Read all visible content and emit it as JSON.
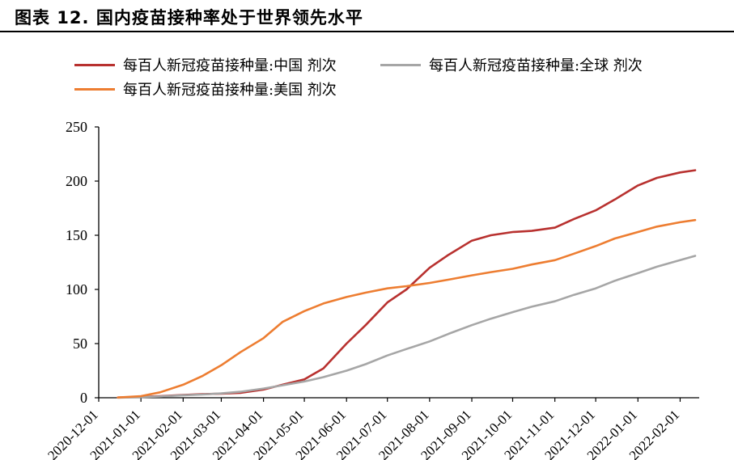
{
  "header": {
    "title": "图表 12. 国内疫苗接种率处于世界领先水平"
  },
  "chart_data": {
    "type": "line",
    "x_unit": "month",
    "x": [
      "2020-12-01",
      "2021-01-01",
      "2021-02-01",
      "2021-03-01",
      "2021-04-01",
      "2021-05-01",
      "2021-06-01",
      "2021-07-01",
      "2021-08-01",
      "2021-09-01",
      "2021-10-01",
      "2021-11-01",
      "2021-12-01",
      "2022-01-01",
      "2022-02-01"
    ],
    "x_tick_labels": [
      "2020-12-01",
      "2021-01-01",
      "2021-02-01",
      "2021-03-01",
      "2021-04-01",
      "2021-05-01",
      "2021-06-01",
      "2021-07-01",
      "2021-08-01",
      "2021-09-01",
      "2021-10-01",
      "2021-11-01",
      "2021-12-01",
      "2022-01-01",
      "2022-02-01"
    ],
    "ylim": [
      0,
      250
    ],
    "y_ticks": [
      0,
      50,
      100,
      150,
      200,
      250
    ],
    "grid": false,
    "legend_position": "top",
    "series": [
      {
        "name": "每百人新冠疫苗接种量:中国 剂次",
        "color": "#b8312f",
        "points": [
          [
            "2020-12-15",
            0.2
          ],
          [
            "2021-01-01",
            0.8
          ],
          [
            "2021-01-15",
            1.5
          ],
          [
            "2021-02-01",
            2.6
          ],
          [
            "2021-02-15",
            3.3
          ],
          [
            "2021-03-01",
            3.8
          ],
          [
            "2021-03-15",
            4.5
          ],
          [
            "2021-04-01",
            7.5
          ],
          [
            "2021-04-15",
            12
          ],
          [
            "2021-05-01",
            17
          ],
          [
            "2021-05-15",
            27
          ],
          [
            "2021-06-01",
            50
          ],
          [
            "2021-06-15",
            67
          ],
          [
            "2021-07-01",
            88
          ],
          [
            "2021-07-15",
            100
          ],
          [
            "2021-08-01",
            120
          ],
          [
            "2021-08-15",
            132
          ],
          [
            "2021-09-01",
            145
          ],
          [
            "2021-09-15",
            150
          ],
          [
            "2021-10-01",
            153
          ],
          [
            "2021-10-15",
            154
          ],
          [
            "2021-11-01",
            157
          ],
          [
            "2021-11-15",
            165
          ],
          [
            "2021-12-01",
            173
          ],
          [
            "2021-12-15",
            183
          ],
          [
            "2022-01-01",
            196
          ],
          [
            "2022-01-15",
            203
          ],
          [
            "2022-02-01",
            208
          ],
          [
            "2022-02-12",
            210
          ]
        ]
      },
      {
        "name": "每百人新冠疫苗接种量:全球 剂次",
        "color": "#a6a6a6",
        "points": [
          [
            "2020-12-15",
            0.1
          ],
          [
            "2021-01-01",
            0.6
          ],
          [
            "2021-01-15",
            1.2
          ],
          [
            "2021-02-01",
            2.3
          ],
          [
            "2021-02-15",
            3.0
          ],
          [
            "2021-03-01",
            4.0
          ],
          [
            "2021-03-15",
            5.5
          ],
          [
            "2021-04-01",
            8.5
          ],
          [
            "2021-04-15",
            11.5
          ],
          [
            "2021-05-01",
            15
          ],
          [
            "2021-05-15",
            19
          ],
          [
            "2021-06-01",
            25
          ],
          [
            "2021-06-15",
            31
          ],
          [
            "2021-07-01",
            39
          ],
          [
            "2021-07-15",
            45
          ],
          [
            "2021-08-01",
            52
          ],
          [
            "2021-08-15",
            59
          ],
          [
            "2021-09-01",
            67
          ],
          [
            "2021-09-15",
            73
          ],
          [
            "2021-10-01",
            79
          ],
          [
            "2021-10-15",
            84
          ],
          [
            "2021-11-01",
            89
          ],
          [
            "2021-11-15",
            95
          ],
          [
            "2021-12-01",
            101
          ],
          [
            "2021-12-15",
            108
          ],
          [
            "2022-01-01",
            115
          ],
          [
            "2022-01-15",
            121
          ],
          [
            "2022-02-01",
            127
          ],
          [
            "2022-02-12",
            131
          ]
        ]
      },
      {
        "name": "每百人新冠疫苗接种量:美国 剂次",
        "color": "#ed7d31",
        "points": [
          [
            "2020-12-15",
            0.2
          ],
          [
            "2021-01-01",
            1.5
          ],
          [
            "2021-01-15",
            5
          ],
          [
            "2021-02-01",
            12
          ],
          [
            "2021-02-15",
            20
          ],
          [
            "2021-03-01",
            30
          ],
          [
            "2021-03-15",
            42
          ],
          [
            "2021-04-01",
            55
          ],
          [
            "2021-04-15",
            70
          ],
          [
            "2021-05-01",
            80
          ],
          [
            "2021-05-15",
            87
          ],
          [
            "2021-06-01",
            93
          ],
          [
            "2021-06-15",
            97
          ],
          [
            "2021-07-01",
            101
          ],
          [
            "2021-07-15",
            103
          ],
          [
            "2021-08-01",
            106
          ],
          [
            "2021-08-15",
            109
          ],
          [
            "2021-09-01",
            113
          ],
          [
            "2021-09-15",
            116
          ],
          [
            "2021-10-01",
            119
          ],
          [
            "2021-10-15",
            123
          ],
          [
            "2021-11-01",
            127
          ],
          [
            "2021-11-15",
            133
          ],
          [
            "2021-12-01",
            140
          ],
          [
            "2021-12-15",
            147
          ],
          [
            "2022-01-01",
            153
          ],
          [
            "2022-01-15",
            158
          ],
          [
            "2022-02-01",
            162
          ],
          [
            "2022-02-12",
            164
          ]
        ]
      }
    ]
  }
}
